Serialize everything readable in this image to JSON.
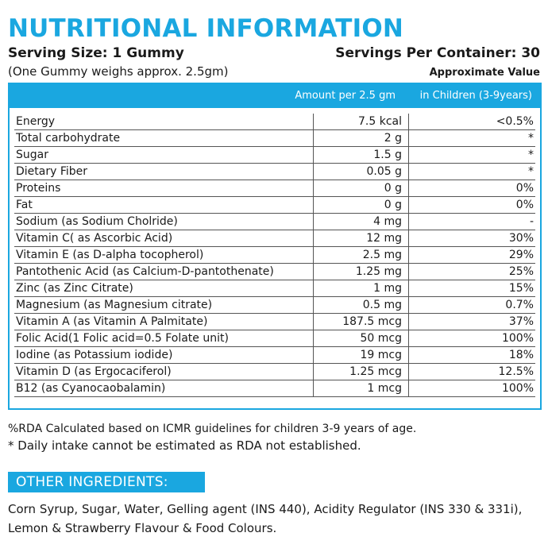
{
  "title": "NUTRITIONAL INFORMATION",
  "serving_size": "Serving Size:  1 Gummy",
  "servings_per_container": "Servings Per Container:  30",
  "gummy_weight": "(One Gummy weighs approx. 2.5gm)",
  "approximate_value": "Approximate Value",
  "table": {
    "header_amount": "Amount per 2.5 gm",
    "header_rda": "in Children (3-9years)",
    "rows": [
      {
        "name": "Energy",
        "amount": "7.5 kcal",
        "rda": "<0.5%"
      },
      {
        "name": "Total carbohydrate",
        "amount": "2 g",
        "rda": "*"
      },
      {
        "name": "Sugar",
        "amount": "1.5 g",
        "rda": "*"
      },
      {
        "name": "Dietary Fiber",
        "amount": "0.05 g",
        "rda": "*"
      },
      {
        "name": "Proteins",
        "amount": "0 g",
        "rda": "0%"
      },
      {
        "name": "Fat",
        "amount": "0 g",
        "rda": "0%"
      },
      {
        "name": "Sodium (as Sodium Cholride)",
        "amount": "4 mg",
        "rda": "-"
      },
      {
        "name": "Vitamin C( as Ascorbic Acid)",
        "amount": "12  mg",
        "rda": "30%"
      },
      {
        "name": "Vitamin E (as D-alpha tocopherol)",
        "amount": "2.5  mg",
        "rda": "29%"
      },
      {
        "name": "Pantothenic Acid (as Calcium-D-pantothenate)",
        "amount": "1.25  mg",
        "rda": "25%"
      },
      {
        "name": "Zinc (as Zinc Citrate)",
        "amount": "1  mg",
        "rda": "15%"
      },
      {
        "name": "Magnesium  (as Magnesium citrate)",
        "amount": "0.5  mg",
        "rda": "0.7%"
      },
      {
        "name": "Vitamin A (as Vitamin A Palmitate)",
        "amount": "187.5  mcg",
        "rda": "37%"
      },
      {
        "name": "Folic Acid(1 Folic acid=0.5 Folate unit)",
        "amount": "50  mcg",
        "rda": "100%"
      },
      {
        "name": "Iodine (as Potassium iodide)",
        "amount": "19  mcg",
        "rda": "18%"
      },
      {
        "name": "Vitamin D (as Ergocaciferol)",
        "amount": "1.25  mcg",
        "rda": "12.5%"
      },
      {
        "name": "B12 (as Cyanocaobalamin)",
        "amount": "1  mcg",
        "rda": "100%"
      }
    ]
  },
  "note_rda": "%RDA Calculated based on ICMR guidelines for children 3-9 years of age.",
  "note_daily": "* Daily intake cannot be estimated as RDA not established.",
  "other_ingredients_heading": "OTHER INGREDIENTS:",
  "ingredients_text": "Corn Syrup, Sugar, Water, Gelling agent (INS 440), Acidity Regulator (INS 330 & 331i), Lemon & Strawberry Flavour & Food Colours.",
  "colors": {
    "accent": "#1aa7e0"
  }
}
